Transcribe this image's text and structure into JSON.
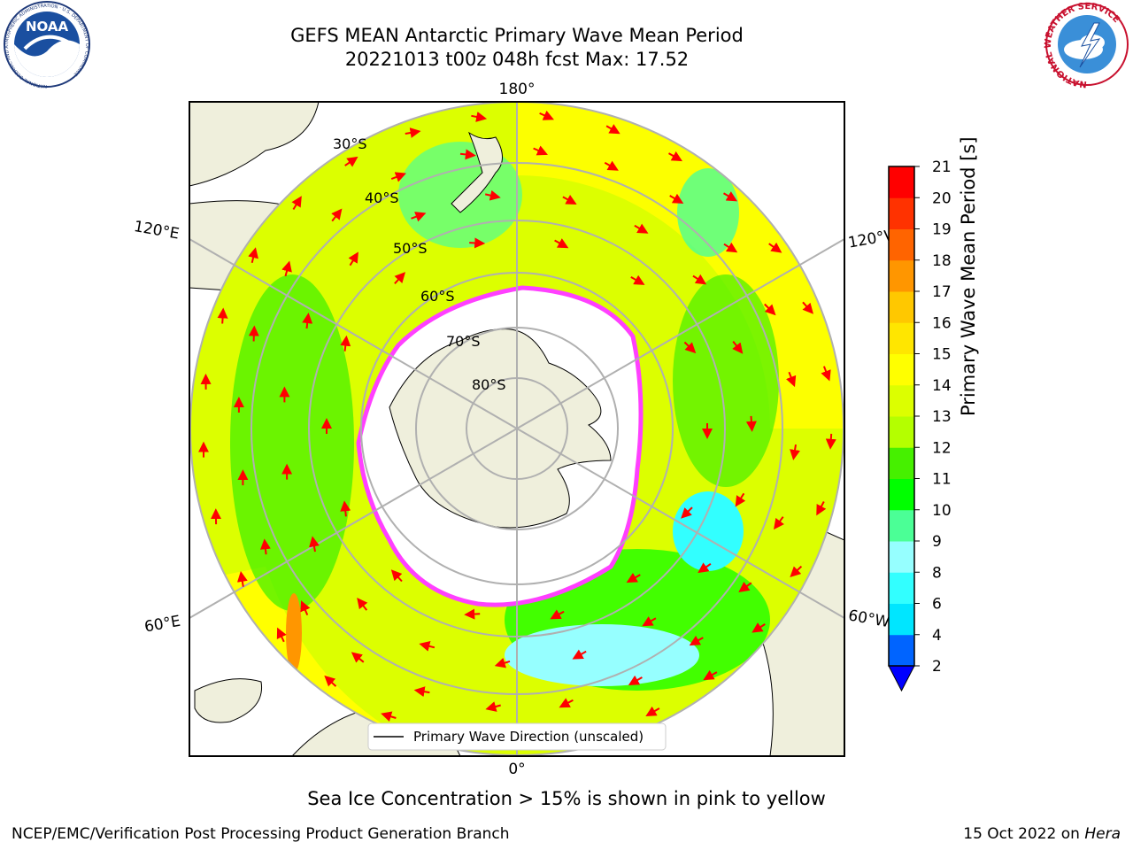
{
  "header": {
    "title_line1": "GEFS MEAN Antarctic Primary Wave Mean Period",
    "title_line2": "20221013 t00z 048h fcst   Max: 17.52"
  },
  "logos": {
    "left": "NOAA",
    "left_ring_text": "NATIONAL OCEANIC AND ATMOSPHERIC ADMINISTRATION · U.S. DEPARTMENT OF COMMERCE",
    "right_ring_text": "NATIONAL WEATHER SERVICE"
  },
  "map": {
    "longitude_labels": {
      "top": "180°",
      "bottom": "0°",
      "upper_left": "120°E",
      "lower_left": "60°E",
      "upper_right": "120°W",
      "lower_right": "60°W"
    },
    "latitude_labels": [
      "30°S",
      "40°S",
      "50°S",
      "60°S",
      "70°S",
      "80°S"
    ],
    "legend": "Primary Wave Direction (unscaled)"
  },
  "colorbar": {
    "label": "Primary Wave Mean Period [s]",
    "ticks": [
      "2",
      "4",
      "6",
      "8",
      "9",
      "10",
      "11",
      "12",
      "13",
      "14",
      "15",
      "16",
      "17",
      "18",
      "19",
      "20",
      "21"
    ],
    "colors": [
      "#0064ff",
      "#00e6ff",
      "#32ffff",
      "#96ffff",
      "#4bff96",
      "#00ff00",
      "#46f000",
      "#b4ff00",
      "#dcff00",
      "#ffff00",
      "#ffe600",
      "#ffc800",
      "#ff9600",
      "#ff6400",
      "#ff3200",
      "#ff0000"
    ],
    "extend_color": "#0000ff"
  },
  "caption": "Sea Ice Concentration > 15% is shown in pink to yellow",
  "footer": {
    "left": "NCEP/EMC/Verification Post Processing Product Generation Branch",
    "right_prefix": "15 Oct 2022 on ",
    "right_host": "Hera"
  },
  "colors": {
    "land": "#efefdc",
    "ice_edge": "#ff40ff",
    "arrow": "#ff0000",
    "grid": "#b0b0b0"
  }
}
